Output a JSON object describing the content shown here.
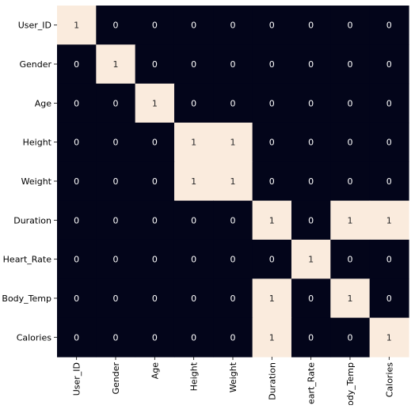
{
  "chart_data": {
    "type": "heatmap",
    "title": "",
    "xlabel": "",
    "ylabel": "",
    "rows": [
      "User_ID",
      "Gender",
      "Age",
      "Height",
      "Weight",
      "Duration",
      "Heart_Rate",
      "Body_Temp",
      "Calories"
    ],
    "columns": [
      "User_ID",
      "Gender",
      "Age",
      "Height",
      "Weight",
      "Duration",
      "Heart_Rate",
      "Body_Temp",
      "Calories"
    ],
    "values": [
      [
        1,
        0,
        0,
        0,
        0,
        0,
        0,
        0,
        0
      ],
      [
        0,
        1,
        0,
        0,
        0,
        0,
        0,
        0,
        0
      ],
      [
        0,
        0,
        1,
        0,
        0,
        0,
        0,
        0,
        0
      ],
      [
        0,
        0,
        0,
        1,
        1,
        0,
        0,
        0,
        0
      ],
      [
        0,
        0,
        0,
        1,
        1,
        0,
        0,
        0,
        0
      ],
      [
        0,
        0,
        0,
        0,
        0,
        1,
        0,
        1,
        1
      ],
      [
        0,
        0,
        0,
        0,
        0,
        0,
        1,
        0,
        0
      ],
      [
        0,
        0,
        0,
        0,
        0,
        1,
        0,
        1,
        0
      ],
      [
        0,
        0,
        0,
        0,
        0,
        1,
        0,
        0,
        1
      ]
    ],
    "annotated": true,
    "colorbar": false,
    "colors": {
      "low": "#03051a",
      "high": "#faebdd",
      "low_text": "#ffffff",
      "high_text": "#262626",
      "axis_text": "#000000"
    }
  }
}
